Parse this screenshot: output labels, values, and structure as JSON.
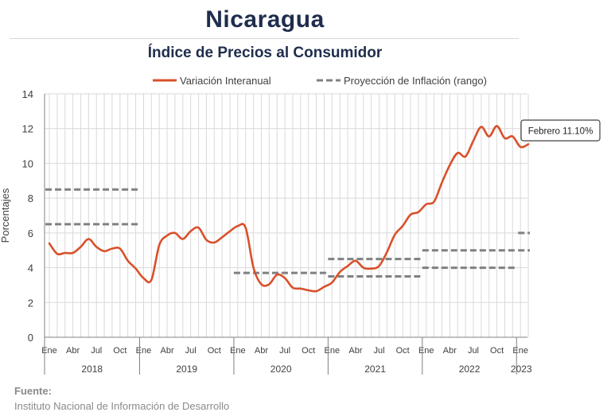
{
  "title": "Nicaragua",
  "subtitle": "Índice de Precios al Consumidor",
  "source_label": "Fuente:",
  "source_text": "Instituto Nacional de Información de  Desarrollo",
  "colors": {
    "series": "#d9502a",
    "projection": "#808080",
    "grid": "#d9d9d9",
    "title": "#1f2d4d"
  },
  "chart_data": {
    "type": "line",
    "ylabel": "Porcentajes",
    "ylim": [
      0,
      14
    ],
    "yticks": [
      0,
      2,
      4,
      6,
      8,
      10,
      12,
      14
    ],
    "grid": true,
    "legend": {
      "placement": "top",
      "entries": [
        "Variación Interanual",
        "Proyección de Inflación (rango)"
      ]
    },
    "x_month_labels": [
      "Ene",
      "Abr",
      "Jul",
      "Oct",
      "Ene",
      "Abr",
      "Jul",
      "Oct",
      "Ene",
      "Abr",
      "Jul",
      "Oct",
      "Ene",
      "Abr",
      "Jul",
      "Oct",
      "Ene",
      "Abr",
      "Jul",
      "Oct",
      "Ene"
    ],
    "years": [
      "2018",
      "2019",
      "2020",
      "2021",
      "2022",
      "2023"
    ],
    "series": [
      {
        "name": "Variación Interanual",
        "x_start": "Ene 2018",
        "values": [
          5.4,
          4.8,
          4.85,
          4.85,
          5.2,
          5.65,
          5.2,
          4.95,
          5.1,
          5.1,
          4.4,
          3.95,
          3.4,
          3.3,
          5.3,
          5.85,
          6.0,
          5.65,
          6.1,
          6.3,
          5.6,
          5.45,
          5.75,
          6.1,
          6.4,
          6.3,
          4.0,
          3.05,
          3.05,
          3.6,
          3.4,
          2.85,
          2.8,
          2.7,
          2.65,
          2.9,
          3.15,
          3.75,
          4.1,
          4.4,
          4.0,
          3.95,
          4.1,
          4.9,
          5.9,
          6.4,
          7.05,
          7.2,
          7.65,
          7.8,
          8.9,
          9.9,
          10.6,
          10.4,
          11.3,
          12.1,
          11.55,
          12.15,
          11.45,
          11.55,
          10.95,
          11.1
        ]
      },
      {
        "name": "Proyección de Inflación (rango)",
        "segments": [
          {
            "year": "2018",
            "low": 6.5,
            "high": 8.5
          },
          {
            "year": "2020",
            "low": 3.7,
            "high": 3.7
          },
          {
            "year": "2021",
            "low": 3.5,
            "high": 4.5
          },
          {
            "year": "2022",
            "low": 4.0,
            "high": 5.0
          },
          {
            "year": "2023",
            "low": 5.0,
            "high": 6.0
          }
        ]
      }
    ],
    "annotation": "Febrero 11.10%"
  }
}
